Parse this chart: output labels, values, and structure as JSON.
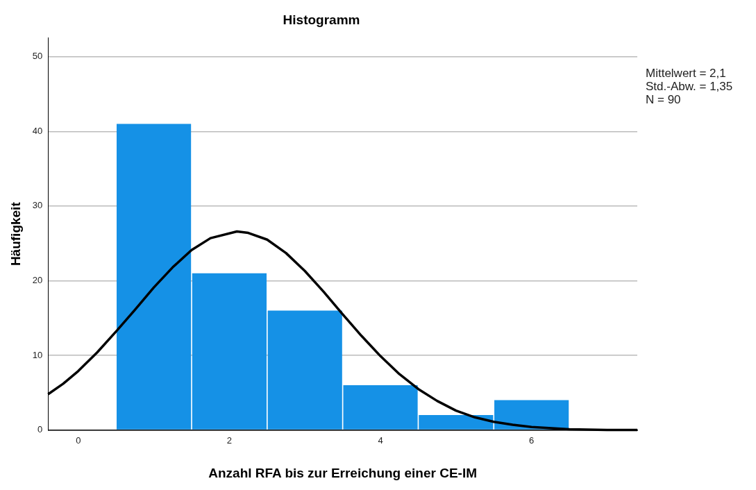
{
  "chart_data": {
    "type": "histogram",
    "title": "Histogramm",
    "xlabel": "Anzahl RFA bis zur Erreichung einer CE-IM",
    "ylabel": "Häufigkeit",
    "bins": [
      0.5,
      1.5,
      2.5,
      3.5,
      4.5,
      5.5,
      6.5
    ],
    "values": [
      41,
      21,
      16,
      6,
      2,
      4
    ],
    "color": "#1591e6",
    "series": [
      {
        "type": "line",
        "color": "#000000",
        "x": [
          -0.4,
          -0.2,
          0,
          0.25,
          0.5,
          0.75,
          1,
          1.25,
          1.5,
          1.75,
          2.1,
          2.25,
          2.5,
          2.75,
          3,
          3.25,
          3.5,
          3.75,
          4,
          4.25,
          4.5,
          4.75,
          5,
          5.25,
          5.5,
          5.75,
          6,
          6.5,
          7,
          7.4
        ],
        "values": [
          4.8,
          6.2,
          7.9,
          10.4,
          13.2,
          16.1,
          19.1,
          21.8,
          24.1,
          25.7,
          26.6,
          26.4,
          25.5,
          23.7,
          21.3,
          18.5,
          15.5,
          12.6,
          9.9,
          7.5,
          5.5,
          3.9,
          2.6,
          1.7,
          1.1,
          0.7,
          0.4,
          0.1,
          0,
          0
        ]
      }
    ],
    "xlim": [
      -0.4,
      7.4
    ],
    "xticks": [
      0,
      2,
      4,
      6
    ],
    "ylim": [
      0,
      52.5
    ],
    "yticks": [
      0,
      10,
      20,
      30,
      40,
      50
    ],
    "grid": "y",
    "legend": false,
    "annotations": [
      "Mittelwert = 2,1",
      "Std.-Abw. = 1,35",
      "N = 90"
    ]
  }
}
